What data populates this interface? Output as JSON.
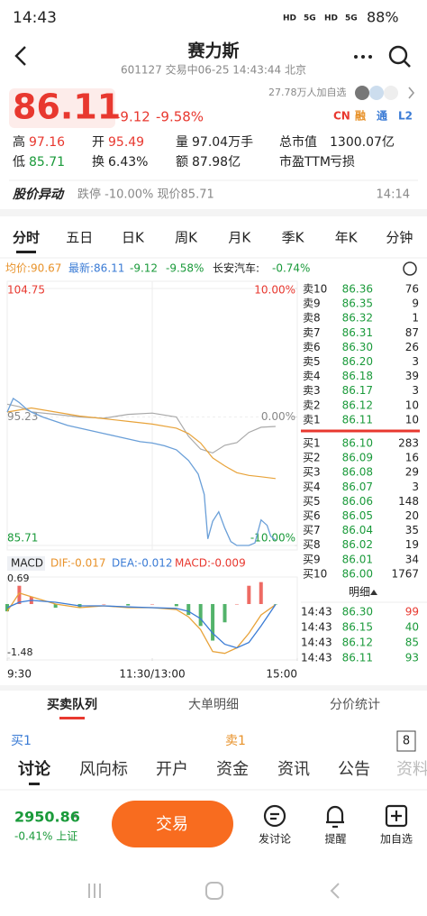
{
  "status": {
    "time": "14:43",
    "signal": [
      "HD",
      "5G",
      "HD",
      "5G"
    ],
    "battery": "88%"
  },
  "header": {
    "title": "赛力斯",
    "subtitle": "601127 交易中06-25 14:43:44 北京"
  },
  "quote": {
    "price": "86.11",
    "change": "-9.12",
    "percent": "-9.58%",
    "followers": "27.78万人加自选",
    "tags": [
      "CN",
      "融",
      "通",
      "L2"
    ]
  },
  "stats": [
    {
      "label": "高",
      "value": "97.16"
    },
    {
      "label": "开",
      "value": "95.49"
    },
    {
      "label": "量",
      "value": "97.04万手"
    },
    {
      "label": "总市值",
      "value": "1300.07亿"
    },
    {
      "label": "低",
      "value": "85.71"
    },
    {
      "label": "换",
      "value": "6.43%"
    },
    {
      "label": "额",
      "value": "87.98亿"
    },
    {
      "label": "市盈TTM",
      "value": "亏损"
    }
  ],
  "alert": {
    "title": "股价异动",
    "text": "跌停 -10.00% 现价85.71",
    "time": "14:14"
  },
  "tabs": [
    "分时",
    "五日",
    "日K",
    "周K",
    "月K",
    "季K",
    "年K",
    "分钟"
  ],
  "chart_data": [
    {
      "type": "line",
      "legend": [
        "均价:90.67",
        "最新:86.11",
        "-9.12",
        "-9.58%",
        "长安汽车:",
        "-0.74%"
      ],
      "xlim": [
        0,
        240
      ],
      "ylim": [
        85.71,
        104.75
      ],
      "yticks": [
        104.75,
        95.23,
        85.71
      ],
      "y2lim": [
        -10,
        10
      ],
      "y2ticks": [
        {
          "value": 10,
          "label": "10.00%"
        },
        {
          "value": 0,
          "label": "0.00%"
        },
        {
          "value": -10,
          "label": "-10.00%"
        }
      ],
      "series": [
        {
          "color": "#aaaaaa",
          "axis": "y2",
          "x": [
            0,
            10,
            20,
            40,
            60,
            80,
            100,
            120,
            140,
            150,
            160,
            170,
            180,
            190,
            200,
            210,
            222
          ],
          "values": [
            1.0,
            0.8,
            0.4,
            0.2,
            0,
            -0.1,
            0.2,
            0.3,
            0,
            -1.5,
            -2.5,
            -2.8,
            -2.2,
            -2.0,
            -1.2,
            -0.8,
            -0.74
          ]
        },
        {
          "color": "#e8a33a",
          "x": [
            0,
            20,
            40,
            60,
            80,
            100,
            120,
            140,
            150,
            160,
            170,
            180,
            190,
            200,
            210,
            222
          ],
          "values": [
            95.6,
            95.9,
            95.6,
            95.3,
            95.1,
            94.9,
            94.7,
            94.4,
            94.0,
            93.3,
            92.2,
            91.6,
            91.1,
            90.9,
            90.8,
            90.67
          ]
        },
        {
          "color": "#6a9fd8",
          "x": [
            0,
            5,
            10,
            15,
            20,
            30,
            40,
            50,
            60,
            70,
            80,
            90,
            100,
            110,
            120,
            130,
            140,
            150,
            158,
            163,
            166,
            170,
            175,
            180,
            185,
            190,
            200,
            205,
            210,
            215,
            218,
            222
          ],
          "values": [
            95.6,
            96.6,
            96.3,
            95.9,
            95.6,
            95.2,
            94.9,
            94.6,
            94.4,
            94.2,
            94.0,
            93.8,
            93.6,
            93.4,
            93.3,
            93.1,
            92.8,
            92.0,
            91.0,
            89.5,
            86.2,
            87.5,
            88.2,
            87.0,
            86.0,
            85.71,
            85.71,
            85.9,
            87.6,
            87.2,
            86.4,
            86.11
          ]
        }
      ]
    },
    {
      "type": "macd",
      "title": "MACD",
      "legend": [
        "DIF:-0.017",
        "DEA:-0.012",
        "MACD:-0.009"
      ],
      "xlim": [
        0,
        240
      ],
      "ylim": [
        -1.48,
        0.69
      ],
      "yticks": [
        0.69,
        -1.48
      ],
      "xticks": [
        {
          "value": 0,
          "label": "9:30"
        },
        {
          "value": 120,
          "label": "11:30/13:00"
        },
        {
          "value": 240,
          "label": "15:00"
        }
      ],
      "x": [
        0,
        10,
        20,
        40,
        60,
        80,
        100,
        120,
        140,
        150,
        160,
        170,
        180,
        190,
        200,
        210,
        222
      ],
      "series": [
        {
          "color": "#e8a33a",
          "values": [
            -0.2,
            0.3,
            0.2,
            0.0,
            -0.1,
            -0.05,
            -0.1,
            -0.1,
            -0.15,
            -0.35,
            -0.7,
            -1.3,
            -1.35,
            -1.2,
            -0.8,
            -0.3,
            -0.017
          ]
        },
        {
          "color": "#3a7bd5",
          "values": [
            -0.1,
            0.05,
            0.1,
            0.05,
            -0.05,
            -0.05,
            -0.08,
            -0.1,
            -0.12,
            -0.2,
            -0.4,
            -0.8,
            -1.1,
            -1.2,
            -1.05,
            -0.6,
            -0.012
          ]
        }
      ],
      "histogram": {
        "up_color": "#e8382f",
        "down_color": "#1a9a3a",
        "values": [
          -0.2,
          0.5,
          0.2,
          -0.1,
          -0.1,
          0,
          -0.04,
          0,
          -0.06,
          -0.3,
          -0.6,
          -1.0,
          -0.5,
          0,
          0.5,
          0.6,
          -0.009
        ]
      }
    }
  ],
  "order_book": {
    "sell": [
      {
        "label": "卖10",
        "price": "86.36",
        "volume": "76"
      },
      {
        "label": "卖9",
        "price": "86.35",
        "volume": "9"
      },
      {
        "label": "卖8",
        "price": "86.32",
        "volume": "1"
      },
      {
        "label": "卖7",
        "price": "86.31",
        "volume": "87"
      },
      {
        "label": "卖6",
        "price": "86.30",
        "volume": "26"
      },
      {
        "label": "卖5",
        "price": "86.20",
        "volume": "3"
      },
      {
        "label": "卖4",
        "price": "86.18",
        "volume": "39"
      },
      {
        "label": "卖3",
        "price": "86.17",
        "volume": "3"
      },
      {
        "label": "卖2",
        "price": "86.12",
        "volume": "10"
      },
      {
        "label": "卖1",
        "price": "86.11",
        "volume": "10"
      }
    ],
    "buy": [
      {
        "label": "买1",
        "price": "86.10",
        "volume": "283"
      },
      {
        "label": "买2",
        "price": "86.09",
        "volume": "16"
      },
      {
        "label": "买3",
        "price": "86.08",
        "volume": "29"
      },
      {
        "label": "买4",
        "price": "86.07",
        "volume": "3"
      },
      {
        "label": "买5",
        "price": "86.06",
        "volume": "148"
      },
      {
        "label": "买6",
        "price": "86.05",
        "volume": "20"
      },
      {
        "label": "买7",
        "price": "86.04",
        "volume": "35"
      },
      {
        "label": "买8",
        "price": "86.02",
        "volume": "19"
      },
      {
        "label": "买9",
        "price": "86.01",
        "volume": "34"
      },
      {
        "label": "买10",
        "price": "86.00",
        "volume": "1767"
      }
    ]
  },
  "detail_label": "明细",
  "trades": [
    {
      "time": "14:43",
      "price": "86.30",
      "volume": "99"
    },
    {
      "time": "14:43",
      "price": "86.15",
      "volume": "40"
    },
    {
      "time": "14:43",
      "price": "86.12",
      "volume": "85"
    },
    {
      "time": "14:43",
      "price": "86.11",
      "volume": "93"
    }
  ],
  "sub_tabs": [
    "买卖队列",
    "大单明细",
    "分价统计"
  ],
  "queue": {
    "buy": "买1",
    "sell": "卖1",
    "count": "8"
  },
  "bottom_tabs": [
    "讨论",
    "风向标",
    "开户",
    "资金",
    "资讯",
    "公告",
    "资料"
  ],
  "footer": {
    "index_value": "2950.86",
    "index_change": "-0.41% 上证",
    "trade_button": "交易",
    "actions": [
      "发讨论",
      "提醒",
      "加自选"
    ]
  }
}
